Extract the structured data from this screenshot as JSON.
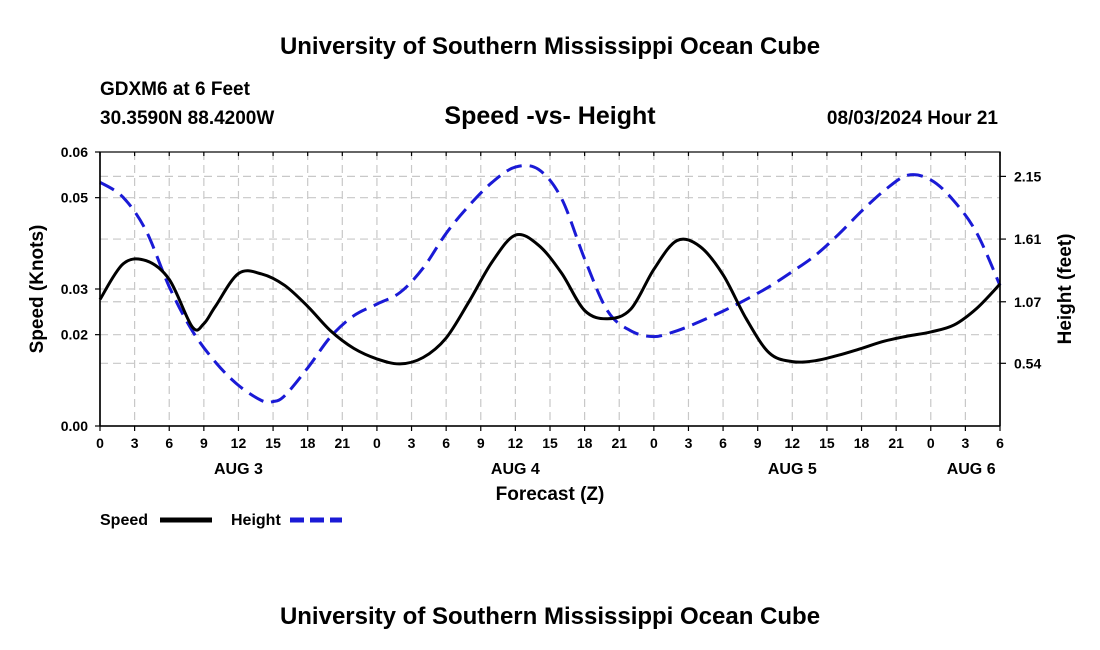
{
  "header": {
    "title": "University of Southern Mississippi Ocean Cube",
    "station": "GDXM6 at 6 Feet",
    "coords": "30.3590N  88.4200W",
    "subtitle": "Speed -vs- Height",
    "datetime": "08/03/2024 Hour 21"
  },
  "footer": {
    "title": "University of Southern Mississippi Ocean Cube"
  },
  "legend": {
    "speed_label": "Speed",
    "height_label": "Height"
  },
  "colors": {
    "speed": "#000000",
    "height": "#1a1ad6"
  },
  "chart_data": {
    "type": "line",
    "title": "Speed -vs- Height",
    "xlabel": "Forecast (Z)",
    "ylabel": "Speed (Knots)",
    "y2label": "Height (feet)",
    "x_unit": "forecast hours from AUG 3 00Z",
    "xlim": [
      0,
      78
    ],
    "ylim": [
      0,
      0.06
    ],
    "y2lim": [
      0,
      2.36
    ],
    "x_ticks": [
      0,
      3,
      6,
      9,
      12,
      15,
      18,
      21,
      24,
      27,
      30,
      33,
      36,
      39,
      42,
      45,
      48,
      51,
      54,
      57,
      60,
      63,
      66,
      69,
      72,
      75,
      78
    ],
    "x_tick_labels": [
      "0",
      "3",
      "6",
      "9",
      "12",
      "15",
      "18",
      "21",
      "0",
      "3",
      "6",
      "9",
      "12",
      "15",
      "18",
      "21",
      "0",
      "3",
      "6",
      "9",
      "12",
      "15",
      "18",
      "21",
      "0",
      "3",
      "6"
    ],
    "y_ticks": [
      0,
      0.02,
      0.03,
      0.05,
      0.06
    ],
    "y_tick_labels": [
      "0.00",
      "0.02",
      "0.03",
      "0.05",
      "0.06"
    ],
    "y2_ticks": [
      0.54,
      1.07,
      1.61,
      2.15
    ],
    "y2_tick_labels": [
      "0.54",
      "1.07",
      "1.61",
      "2.15"
    ],
    "day_labels": [
      {
        "x": 12,
        "label": "AUG 3"
      },
      {
        "x": 36,
        "label": "AUG 4"
      },
      {
        "x": 60,
        "label": "AUG 5"
      },
      {
        "x": 75.5,
        "label": "AUG 6"
      }
    ],
    "series": [
      {
        "name": "Speed",
        "axis": "left",
        "style": "solid",
        "x": [
          0,
          2,
          4,
          6,
          8,
          9,
          10,
          12,
          14,
          16,
          18,
          20,
          22,
          24,
          26,
          28,
          30,
          32,
          34,
          36,
          38,
          40,
          42,
          44,
          46,
          48,
          50,
          52,
          54,
          56,
          58,
          60,
          62,
          64,
          66,
          68,
          70,
          72,
          74,
          76,
          78
        ],
        "y": [
          0.0277,
          0.0355,
          0.0362,
          0.0321,
          0.0217,
          0.0224,
          0.0262,
          0.0334,
          0.0333,
          0.0308,
          0.0262,
          0.0208,
          0.017,
          0.0147,
          0.0136,
          0.015,
          0.0193,
          0.0273,
          0.036,
          0.0418,
          0.0396,
          0.0335,
          0.0253,
          0.0235,
          0.0256,
          0.0343,
          0.0406,
          0.0393,
          0.0331,
          0.0235,
          0.016,
          0.0141,
          0.0143,
          0.0155,
          0.017,
          0.0186,
          0.0197,
          0.0206,
          0.0221,
          0.0258,
          0.0311
        ]
      },
      {
        "name": "Height",
        "axis": "right",
        "style": "dashed",
        "x": [
          0,
          2,
          4,
          6,
          8,
          10,
          12,
          14,
          15,
          16,
          18,
          20,
          22,
          24,
          26,
          28,
          30,
          32,
          34,
          36,
          38,
          40,
          42,
          44,
          46,
          48,
          50,
          52,
          54,
          56,
          58,
          60,
          62,
          64,
          66,
          68,
          70,
          72,
          74,
          76,
          78
        ],
        "y": [
          2.1,
          1.97,
          1.68,
          1.2,
          0.82,
          0.55,
          0.35,
          0.22,
          0.21,
          0.26,
          0.5,
          0.77,
          0.95,
          1.05,
          1.15,
          1.36,
          1.66,
          1.9,
          2.1,
          2.23,
          2.21,
          1.96,
          1.44,
          0.99,
          0.82,
          0.77,
          0.82,
          0.9,
          0.99,
          1.09,
          1.2,
          1.33,
          1.47,
          1.65,
          1.85,
          2.03,
          2.16,
          2.12,
          1.94,
          1.66,
          1.21
        ]
      }
    ]
  }
}
